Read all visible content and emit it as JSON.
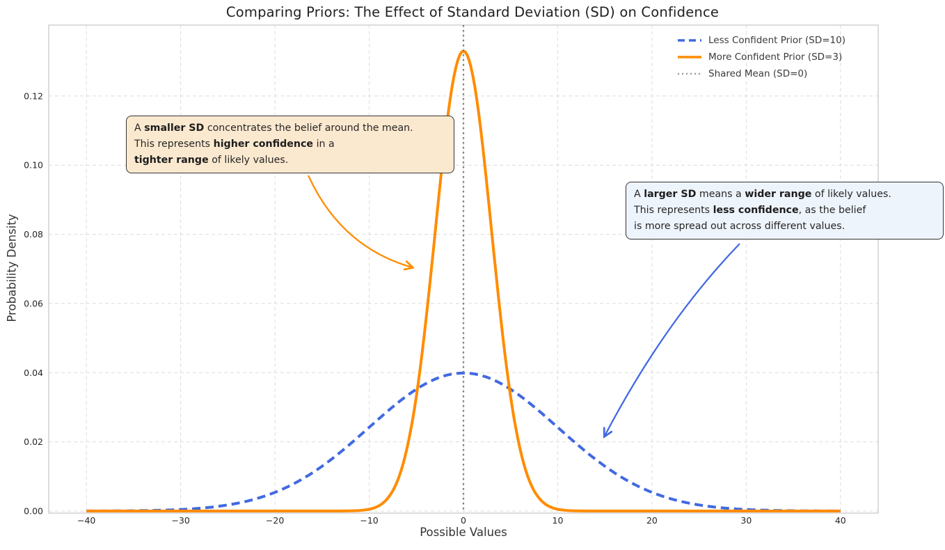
{
  "title": "Comparing Priors: The Effect of Standard Deviation (SD) on Confidence",
  "chart_data": {
    "type": "line",
    "title": "Comparing Priors: The Effect of Standard Deviation (SD) on Confidence",
    "xlabel": "Possible Values",
    "ylabel": "Probability Density",
    "xlim": [
      -44,
      44
    ],
    "ylim": [
      -0.0006,
      0.1405
    ],
    "xticks": [
      -40,
      -30,
      -20,
      -10,
      0,
      10,
      20,
      30,
      40
    ],
    "xtick_labels": [
      "−40",
      "−30",
      "−20",
      "−10",
      "0",
      "10",
      "20",
      "30",
      "40"
    ],
    "yticks": [
      0,
      0.02,
      0.04,
      0.06,
      0.08,
      0.1,
      0.12
    ],
    "ytick_labels": [
      "0.00",
      "0.02",
      "0.04",
      "0.06",
      "0.08",
      "0.10",
      "0.12"
    ],
    "grid": true,
    "legend_position": "upper right",
    "series": [
      {
        "name": "Less Confident Prior (SD=10)",
        "distribution": "normal",
        "mean": 0,
        "sd": 10,
        "peak_density": 0.0399,
        "x_range": [
          -40,
          40
        ],
        "color": "#4169E1",
        "line_style": "dashed",
        "line_width": 4
      },
      {
        "name": "More Confident Prior (SD=3)",
        "distribution": "normal",
        "mean": 0,
        "sd": 3,
        "peak_density": 0.133,
        "x_range": [
          -40,
          40
        ],
        "color": "#FF8C00",
        "line_style": "solid",
        "line_width": 4
      },
      {
        "name": "Shared Mean (SD=0)",
        "distribution": "vline",
        "x": 0,
        "color": "#7f7f7f",
        "line_style": "dotted",
        "line_width": 2
      }
    ]
  },
  "legend": {
    "items": [
      {
        "label": "Less Confident Prior (SD=10)",
        "color": "#4169E1",
        "style": "dashed"
      },
      {
        "label": "More Confident Prior (SD=3)",
        "color": "#FF8C00",
        "style": "solid"
      },
      {
        "label": "Shared Mean (SD=0)",
        "color": "#999999",
        "style": "dotted"
      }
    ]
  },
  "annotations": [
    {
      "id": "smaller-sd-note",
      "bg_color": "#FBE9CF",
      "border_color": "#333333",
      "arrow_color": "#FF8C00",
      "lines": [
        [
          {
            "t": "A ",
            "b": 0
          },
          {
            "t": "smaller SD",
            "b": 1
          },
          {
            "t": " concentrates the belief around the mean.",
            "b": 0
          }
        ],
        [
          {
            "t": "This represents ",
            "b": 0
          },
          {
            "t": "higher confidence",
            "b": 1
          },
          {
            "t": " in a",
            "b": 0
          }
        ],
        [
          {
            "t": "tighter range",
            "b": 1
          },
          {
            "t": " of likely values.",
            "b": 0
          }
        ]
      ]
    },
    {
      "id": "larger-sd-note",
      "bg_color": "#EEF4FB",
      "border_color": "#333333",
      "arrow_color": "#4169E1",
      "lines": [
        [
          {
            "t": "A ",
            "b": 0
          },
          {
            "t": "larger SD",
            "b": 1
          },
          {
            "t": " means a ",
            "b": 0
          },
          {
            "t": "wider range",
            "b": 1
          },
          {
            "t": " of likely values.",
            "b": 0
          }
        ],
        [
          {
            "t": "This represents ",
            "b": 0
          },
          {
            "t": "less confidence",
            "b": 1
          },
          {
            "t": ", as the belief",
            "b": 0
          }
        ],
        [
          {
            "t": "is more spread out across different values.",
            "b": 0
          }
        ]
      ]
    }
  ],
  "colors": {
    "accent_blue": "#4169E1",
    "accent_orange": "#FF8C00",
    "mean_gray": "#7f7f7f",
    "grid": "#dcdcdc",
    "axis_border": "#c9c9c9",
    "text": "#262626"
  }
}
